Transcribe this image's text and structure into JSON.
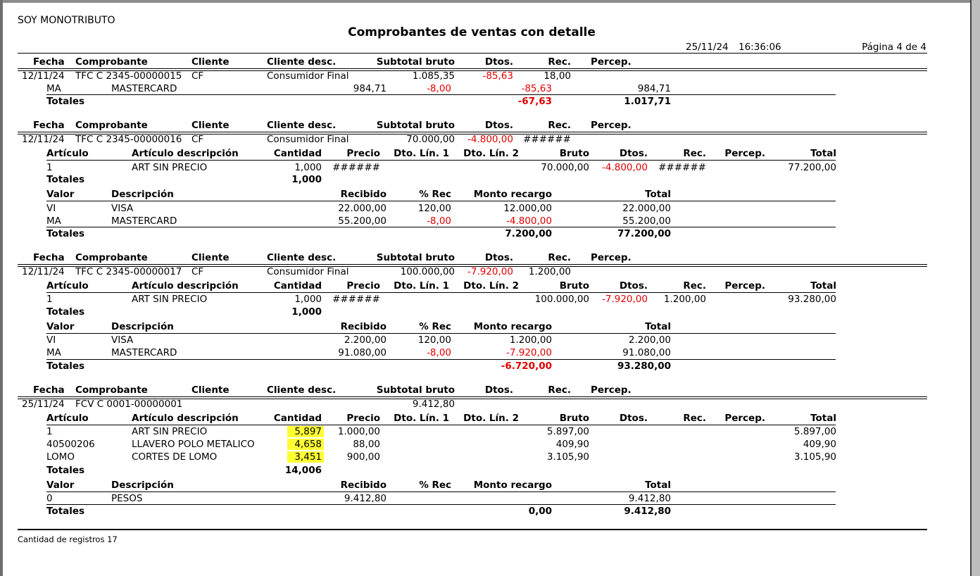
{
  "report": {
    "company": "SOY MONOTRIBUTO",
    "title": "Comprobantes de ventas con detalle",
    "date": "25/11/24",
    "time": "16:36:06",
    "page": "Página 4 de 4",
    "footer": "Cantidad de registros  17"
  },
  "headers": {
    "main": [
      "Fecha",
      "Comprobante",
      "Cliente",
      "Cliente desc.",
      "Subtotal bruto",
      "Dtos.",
      "Rec.",
      "Percep."
    ],
    "items": [
      "Artículo",
      "Artículo descripción",
      "Cantidad",
      "Precio",
      "Dto. Lín. 1",
      "Dto. Lín. 2",
      "Bruto",
      "Dtos.",
      "Rec.",
      "Percep.",
      "Total"
    ],
    "payments": [
      "Valor",
      "Descripción",
      "Recibido",
      "% Rec",
      "Monto recargo",
      "Total"
    ],
    "totales": "Totales"
  },
  "v1": {
    "fecha": "12/11/24",
    "comp": "TFC C 2345-00000015",
    "cliente": "CF",
    "desc": "Consumidor Final",
    "subtotal": "1.085,35",
    "dtos": "-85,63",
    "rec": "18,00",
    "pay1": {
      "valor": "MA",
      "descripcion": "MASTERCARD",
      "recibido": "984,71",
      "prec": "-8,00",
      "monto": "-85,63",
      "total": "984,71"
    },
    "tot_monto": "-67,63",
    "tot_total": "1.017,71"
  },
  "v2": {
    "fecha": "12/11/24",
    "comp": "TFC C 2345-00000016",
    "cliente": "CF",
    "desc": "Consumidor Final",
    "subtotal": "70.000,00",
    "dtos": "-4.800,00",
    "rec": "######",
    "item1": {
      "articulo": "1",
      "descripcion": "ART SIN PRECIO",
      "cantidad": "1,000",
      "precio": "######",
      "bruto": "70.000,00",
      "dtos": "-4.800,00",
      "rec": "######",
      "total": "77.200,00"
    },
    "tot_cantidad": "1,000",
    "pay1": {
      "valor": "VI",
      "descripcion": "VISA",
      "recibido": "22.000,00",
      "prec": "120,00",
      "monto": "12.000,00",
      "total": "22.000,00"
    },
    "pay2": {
      "valor": "MA",
      "descripcion": "MASTERCARD",
      "recibido": "55.200,00",
      "prec": "-8,00",
      "monto": "-4.800,00",
      "total": "55.200,00"
    },
    "tot_monto": "7.200,00",
    "tot_total": "77.200,00"
  },
  "v3": {
    "fecha": "12/11/24",
    "comp": "TFC C 2345-00000017",
    "cliente": "CF",
    "desc": "Consumidor Final",
    "subtotal": "100.000,00",
    "dtos": "-7.920,00",
    "rec": "1.200,00",
    "item1": {
      "articulo": "1",
      "descripcion": "ART SIN PRECIO",
      "cantidad": "1,000",
      "precio": "######",
      "bruto": "100.000,00",
      "dtos": "-7.920,00",
      "rec": "1.200,00",
      "total": "93.280,00"
    },
    "tot_cantidad": "1,000",
    "pay1": {
      "valor": "VI",
      "descripcion": "VISA",
      "recibido": "2.200,00",
      "prec": "120,00",
      "monto": "1.200,00",
      "total": "2.200,00"
    },
    "pay2": {
      "valor": "MA",
      "descripcion": "MASTERCARD",
      "recibido": "91.080,00",
      "prec": "-8,00",
      "monto": "-7.920,00",
      "total": "91.080,00"
    },
    "tot_monto": "-6.720,00",
    "tot_total": "93.280,00"
  },
  "v4": {
    "fecha": "25/11/24",
    "comp": "FCV C 0001-00000001",
    "subtotal": "9.412,80",
    "item1": {
      "articulo": "1",
      "descripcion": "ART SIN PRECIO",
      "cantidad": "5,897",
      "precio": "1.000,00",
      "bruto": "5.897,00",
      "total": "5.897,00"
    },
    "item2": {
      "articulo": "40500206",
      "descripcion": "LLAVERO POLO METALICO",
      "cantidad": "4,658",
      "precio": "88,00",
      "bruto": "409,90",
      "total": "409,90"
    },
    "item3": {
      "articulo": "LOMO",
      "descripcion": "CORTES DE LOMO",
      "cantidad": "3,451",
      "precio": "900,00",
      "bruto": "3.105,90",
      "total": "3.105,90"
    },
    "tot_cantidad": "14,006",
    "pay1": {
      "valor": "0",
      "descripcion": "PESOS",
      "recibido": "9.412,80",
      "total": "9.412,80"
    },
    "tot_monto": "0,00",
    "tot_total": "9.412,80"
  }
}
